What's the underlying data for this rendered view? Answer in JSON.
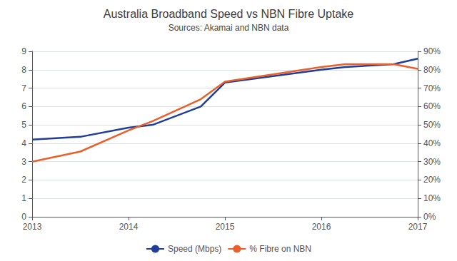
{
  "chart_data": {
    "type": "line",
    "title": "Australia Broadband Speed vs NBN Fibre Uptake",
    "subtitle": "Sources: Akamai and NBN data",
    "x": [
      2013,
      2013.5,
      2014,
      2014.25,
      2014.75,
      2015,
      2015.5,
      2016,
      2016.25,
      2016.75,
      2017
    ],
    "series": [
      {
        "name": "Speed (Mbps)",
        "color": "#1f3d99",
        "values": [
          4.2,
          4.35,
          4.85,
          5.0,
          6.0,
          7.3,
          7.65,
          8.0,
          8.15,
          8.3,
          8.6
        ]
      },
      {
        "name": "% Fibre on NBN",
        "color": "#e8602c",
        "axis": "y2",
        "values": [
          0.3,
          0.355,
          0.47,
          0.52,
          0.64,
          0.735,
          0.775,
          0.815,
          0.83,
          0.83,
          0.805
        ]
      }
    ],
    "xlim": [
      2013,
      2017
    ],
    "xticks": [
      2013,
      2014,
      2015,
      2016,
      2017
    ],
    "ylim": [
      0,
      9
    ],
    "yticks": [
      0,
      1,
      2,
      3,
      4,
      5,
      6,
      7,
      8,
      9
    ],
    "y2lim": [
      0,
      0.9
    ],
    "y2ticks": [
      {
        "value": 0.0,
        "label": "0%"
      },
      {
        "value": 0.1,
        "label": "10%"
      },
      {
        "value": 0.2,
        "label": "20%"
      },
      {
        "value": 0.3,
        "label": "30%"
      },
      {
        "value": 0.4,
        "label": "40%"
      },
      {
        "value": 0.5,
        "label": "50%"
      },
      {
        "value": 0.6,
        "label": "60%"
      },
      {
        "value": 0.7,
        "label": "70%"
      },
      {
        "value": 0.8,
        "label": "80%"
      },
      {
        "value": 0.9,
        "label": "90%"
      }
    ],
    "grid": true,
    "legend": "bottom"
  }
}
